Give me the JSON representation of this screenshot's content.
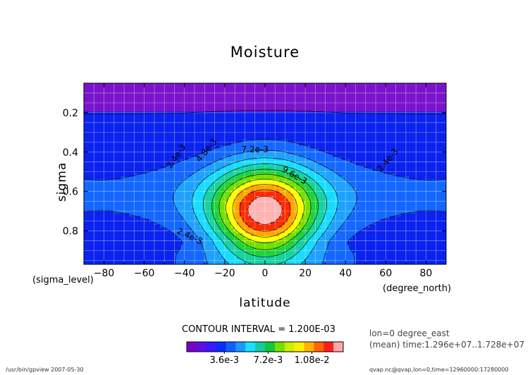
{
  "chart_data": {
    "type": "contour",
    "title": "Moisture",
    "xlabel": "latitude",
    "ylabel": "sigma",
    "x_unit_label": "(degree_north)",
    "y_unit_label": "(sigma_level)",
    "xlim": [
      -90,
      90
    ],
    "ylim": [
      1.0,
      0.0
    ],
    "x_ticks": [
      -80,
      -60,
      -40,
      -20,
      0,
      20,
      40,
      60,
      80
    ],
    "y_ticks": [
      0.2,
      0.4,
      0.6,
      0.8
    ],
    "grid": true,
    "contour_interval_label": "CONTOUR INTERVAL = 1.200E-03",
    "contour_interval": 0.0012,
    "contour_labels": [
      "2.4e-3",
      "4.8e-3",
      "7.2e-3",
      "9.6e-3",
      "2.4e-3",
      "2.4e-3"
    ],
    "colorbar_tick_labels": [
      "3.6e-3",
      "7.2e-3",
      "1.08e-2"
    ],
    "colorbar_colors": [
      "#7a00c8",
      "#5a10e6",
      "#3818ff",
      "#0a2cff",
      "#1060ff",
      "#1c98ff",
      "#19e1ff",
      "#18c8a0",
      "#10c83c",
      "#72e000",
      "#c8f000",
      "#fff000",
      "#ffb400",
      "#ff6400",
      "#ff1e1e",
      "#ffa8a8"
    ],
    "level_colors": [
      "#7a14cc",
      "#0b23ee",
      "#1467ff",
      "#1fa1ff",
      "#18dcff",
      "#18d2a0",
      "#1ed23c",
      "#74e000",
      "#ffff00",
      "#ffa500",
      "#ff2a00",
      "#ffb4b4"
    ]
  },
  "annotations": {
    "info_line1": "lon=0 degree_east",
    "info_line2": "(mean) time:1.296e+07..1.728e+07",
    "footer_left": "/usr/bin/gpview  2007-05-30",
    "footer_right": "qvap.nc@qvap,lon=0,time=12960000:17280000"
  }
}
